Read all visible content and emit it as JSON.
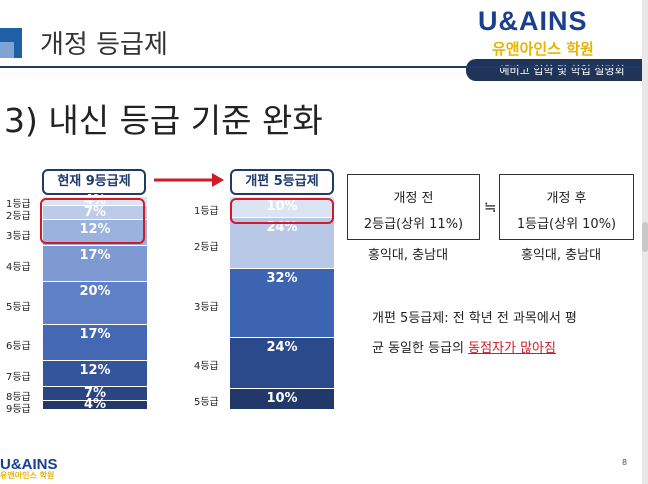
{
  "header": {
    "title": "개정 등급제",
    "logo_en": "U&AINS",
    "logo_ko": "유앤아인스 학원",
    "event": "예비고 입학 및 학업 설명회"
  },
  "section_heading": "3) 내신 등급 기준 완화",
  "old_system": {
    "label": "현재 9등급제",
    "grades": [
      {
        "grade": "1등급",
        "pct": "4%"
      },
      {
        "grade": "2등급",
        "pct": "7%"
      },
      {
        "grade": "3등급",
        "pct": "12%"
      },
      {
        "grade": "4등급",
        "pct": "17%"
      },
      {
        "grade": "5등급",
        "pct": "20%"
      },
      {
        "grade": "6등급",
        "pct": "17%"
      },
      {
        "grade": "7등급",
        "pct": "12%"
      },
      {
        "grade": "8등급",
        "pct": "7%"
      },
      {
        "grade": "9등급",
        "pct": "4%"
      }
    ]
  },
  "new_system": {
    "label": "개편 5등급제",
    "grades": [
      {
        "grade": "1등급",
        "pct": "10%"
      },
      {
        "grade": "2등급",
        "pct": "24%"
      },
      {
        "grade": "3등급",
        "pct": "32%"
      },
      {
        "grade": "4등급",
        "pct": "24%"
      },
      {
        "grade": "5등급",
        "pct": "10%"
      }
    ]
  },
  "compare": {
    "before": {
      "title": "개정 전",
      "detail": "2등급(상위 11%)",
      "universities": "홍익대, 충남대"
    },
    "approx_symbol": "≒",
    "after": {
      "title": "개정 후",
      "detail": "1등급(상위 10%)",
      "universities": "홍익대, 충남대"
    }
  },
  "note": {
    "line1": "개편 5등급제: 전 학년 전 과목에서 평",
    "line2_plain": "균 동일한 등급의 ",
    "line2_emphasis": "동점자가 많아짐"
  },
  "footer": {
    "logo_en": "U&AINS",
    "logo_ko": "유앤아인스 학원",
    "page_number": "8"
  },
  "colors": {
    "navy": "#1f3a6b",
    "highlight_red": "#d01a25",
    "logo_blue": "#1a3f8c",
    "logo_gold": "#e8b400"
  }
}
